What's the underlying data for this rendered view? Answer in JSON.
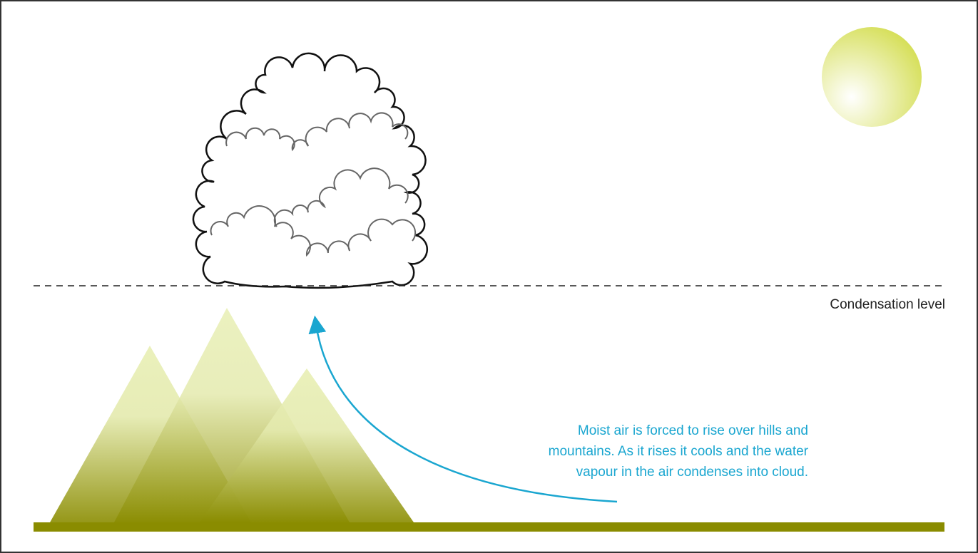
{
  "labels": {
    "condensation_level": "Condensation level"
  },
  "caption": {
    "lines": [
      "Moist air is forced to rise over hills and",
      "mountains. As it rises it cools and the water",
      "vapour in the air condenses into cloud."
    ]
  }
}
